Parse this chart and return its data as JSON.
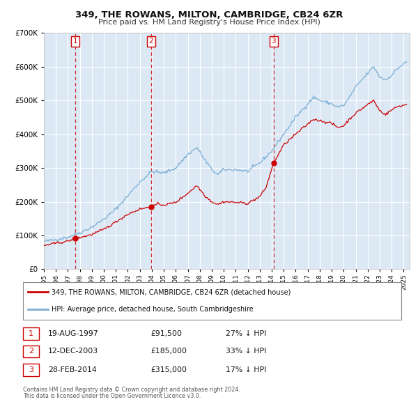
{
  "title": "349, THE ROWANS, MILTON, CAMBRIDGE, CB24 6ZR",
  "subtitle": "Price paid vs. HM Land Registry's House Price Index (HPI)",
  "fig_bg_color": "#ffffff",
  "plot_bg_color": "#dce9f5",
  "red_line_color": "#cc0000",
  "blue_line_color": "#7aadd4",
  "grid_color": "#ffffff",
  "ylim": [
    0,
    700000
  ],
  "yticks": [
    0,
    100000,
    200000,
    300000,
    400000,
    500000,
    600000,
    700000
  ],
  "xlim_start": 1995.0,
  "xlim_end": 2025.5,
  "xticks": [
    1995,
    1996,
    1997,
    1998,
    1999,
    2000,
    2001,
    2002,
    2003,
    2004,
    2005,
    2006,
    2007,
    2008,
    2009,
    2010,
    2011,
    2012,
    2013,
    2014,
    2015,
    2016,
    2017,
    2018,
    2019,
    2020,
    2021,
    2022,
    2023,
    2024,
    2025
  ],
  "transaction_dates": [
    1997.63,
    2003.95,
    2014.16
  ],
  "transaction_prices": [
    91500,
    185000,
    315000
  ],
  "transaction_labels": [
    "1",
    "2",
    "3"
  ],
  "legend_entries": [
    "349, THE ROWANS, MILTON, CAMBRIDGE, CB24 6ZR (detached house)",
    "HPI: Average price, detached house, South Cambridgeshire"
  ],
  "table_rows": [
    {
      "num": "1",
      "date": "19-AUG-1997",
      "price": "£91,500",
      "hpi": "27% ↓ HPI"
    },
    {
      "num": "2",
      "date": "12-DEC-2003",
      "price": "£185,000",
      "hpi": "33% ↓ HPI"
    },
    {
      "num": "3",
      "date": "28-FEB-2014",
      "price": "£315,000",
      "hpi": "17% ↓ HPI"
    }
  ],
  "footnote1": "Contains HM Land Registry data © Crown copyright and database right 2024.",
  "footnote2": "This data is licensed under the Open Government Licence v3.0."
}
